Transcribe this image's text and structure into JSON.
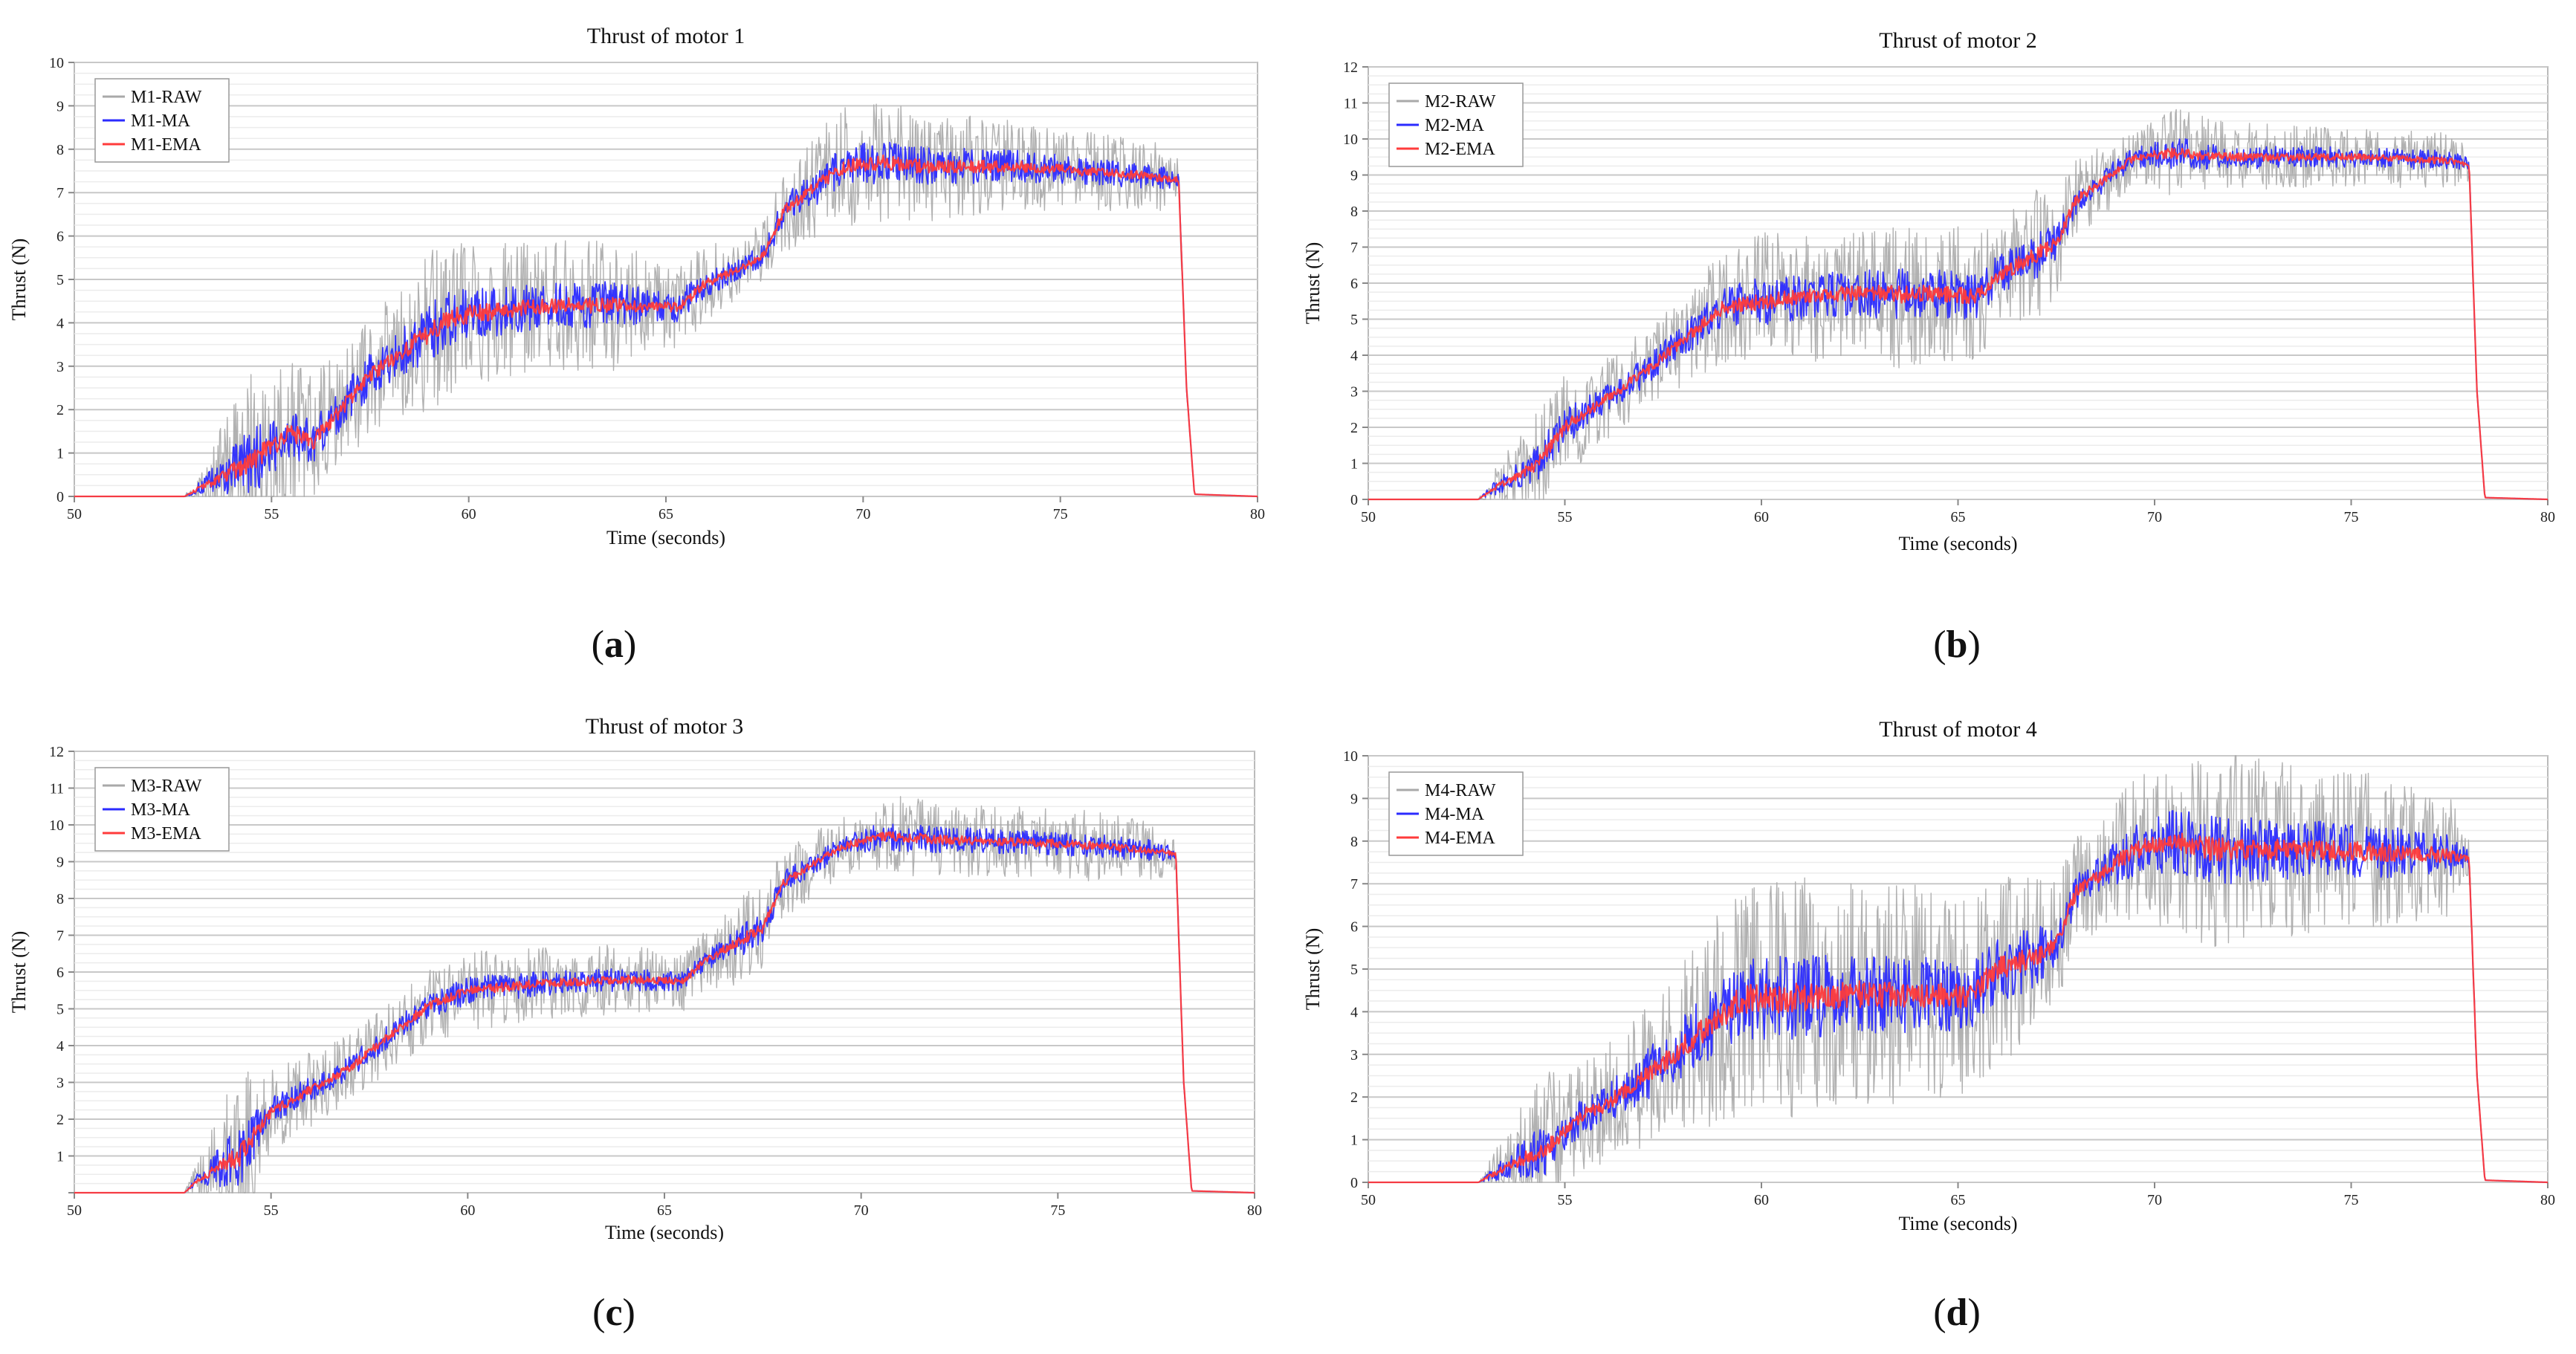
{
  "figure": {
    "x_axis_label": "Time (seconds)",
    "y_axis_label": "Thrust (N)"
  },
  "chart_data": [
    {
      "type": "line",
      "panel_label": "a",
      "title": "Thrust of motor 1",
      "xlabel": "Time (seconds)",
      "ylabel": "Thrust (N)",
      "xlim": [
        50,
        80
      ],
      "ylim": [
        0,
        10
      ],
      "xticks": [
        "50",
        "55",
        "60",
        "65",
        "70",
        "75",
        "80"
      ],
      "yticks": [
        "0",
        "1",
        "2",
        "3",
        "4",
        "5",
        "6",
        "7",
        "8",
        "9",
        "10"
      ],
      "grid": true,
      "legend": "top-left",
      "series": [
        {
          "name": "M1-RAW",
          "color": "#a9a9a9",
          "noise": 1.0
        },
        {
          "name": "M1-MA",
          "color": "#2b2bff",
          "noise": 0.35
        },
        {
          "name": "M1-EMA",
          "color": "#ff3b3b",
          "noise": 0.12
        }
      ],
      "profile": {
        "x": [
          50,
          52.8,
          53.2,
          54.5,
          55.5,
          56,
          57.5,
          59.5,
          60,
          62,
          64,
          65.3,
          66,
          67,
          67.5,
          68,
          69.5,
          70.5,
          71.5,
          74,
          77,
          78.0,
          78.2,
          78.4,
          80
        ],
        "y": [
          0,
          0,
          0.2,
          0.8,
          1.5,
          1.2,
          2.8,
          4.1,
          4.2,
          4.4,
          4.4,
          4.35,
          4.9,
          5.3,
          5.6,
          6.6,
          7.6,
          7.7,
          7.6,
          7.6,
          7.4,
          7.3,
          2.5,
          0.05,
          0
        ]
      },
      "noise_amp": {
        "x": [
          50,
          52.8,
          53.3,
          54.5,
          55,
          56.5,
          58,
          59,
          60,
          62,
          63.5,
          65,
          66,
          67,
          68,
          69,
          70,
          72,
          75,
          77.5,
          78,
          78.3,
          80
        ],
        "a": [
          0,
          0,
          0.4,
          1.4,
          1.2,
          0.9,
          0.9,
          1.2,
          1.1,
          0.9,
          1.0,
          0.6,
          0.6,
          0.4,
          0.6,
          0.8,
          0.9,
          0.8,
          0.6,
          0.5,
          0.3,
          0,
          0
        ]
      }
    },
    {
      "type": "line",
      "panel_label": "b",
      "title": "Thrust of motor 2",
      "xlabel": "Time (seconds)",
      "ylabel": "Thrust (N)",
      "xlim": [
        50,
        80
      ],
      "ylim": [
        0,
        12
      ],
      "xticks": [
        "50",
        "55",
        "60",
        "65",
        "70",
        "75",
        "80"
      ],
      "yticks": [
        "0",
        "1",
        "2",
        "3",
        "4",
        "5",
        "6",
        "7",
        "8",
        "9",
        "10",
        "11",
        "12"
      ],
      "grid": true,
      "legend": "top-left",
      "series": [
        {
          "name": "M2-RAW",
          "color": "#a9a9a9",
          "noise": 1.0
        },
        {
          "name": "M2-MA",
          "color": "#2b2bff",
          "noise": 0.35
        },
        {
          "name": "M2-EMA",
          "color": "#ff3b3b",
          "noise": 0.12
        }
      ],
      "profile": {
        "x": [
          50,
          52.8,
          53.2,
          54.2,
          55,
          57,
          59,
          60,
          62,
          64,
          65.5,
          66,
          67,
          67.5,
          68,
          69.5,
          70.5,
          72,
          75,
          77.5,
          78.0,
          78.2,
          78.4,
          80
        ],
        "y": [
          0,
          0,
          0.3,
          0.9,
          2.0,
          3.5,
          5.3,
          5.5,
          5.7,
          5.7,
          5.65,
          6.2,
          6.8,
          7.1,
          8.3,
          9.5,
          9.6,
          9.5,
          9.5,
          9.4,
          9.3,
          3.0,
          0.05,
          0
        ]
      },
      "noise_amp": {
        "x": [
          50,
          52.8,
          53.3,
          54.5,
          56,
          58,
          60,
          62,
          63.5,
          65,
          66,
          67,
          68,
          69.5,
          70.5,
          72,
          75,
          77.5,
          78,
          78.3,
          80
        ],
        "a": [
          0,
          0,
          0.4,
          1.0,
          0.7,
          0.8,
          1.2,
          1.1,
          1.3,
          1.2,
          1.0,
          1.2,
          0.7,
          0.5,
          0.8,
          0.6,
          0.5,
          0.5,
          0.3,
          0,
          0
        ]
      }
    },
    {
      "type": "line",
      "panel_label": "c",
      "title": "Thrust of motor 3",
      "xlabel": "Time (seconds)",
      "ylabel": "Thrust (N)",
      "xlim": [
        50,
        80
      ],
      "ylim": [
        0,
        12
      ],
      "xticks": [
        "50",
        "55",
        "60",
        "65",
        "70",
        "75",
        "80"
      ],
      "yticks": [
        "",
        "1",
        "2",
        "3",
        "4",
        "5",
        "6",
        "7",
        "8",
        "9",
        "10",
        "11",
        "12"
      ],
      "grid": true,
      "legend": "top-left",
      "series": [
        {
          "name": "M3-RAW",
          "color": "#a9a9a9",
          "noise": 1.0
        },
        {
          "name": "M3-MA",
          "color": "#2b2bff",
          "noise": 0.35
        },
        {
          "name": "M3-EMA",
          "color": "#ff3b3b",
          "noise": 0.12
        }
      ],
      "profile": {
        "x": [
          50,
          52.8,
          53.2,
          54.2,
          55,
          57,
          59,
          60,
          62,
          64,
          65.5,
          66,
          67,
          67.5,
          68,
          69.5,
          70.5,
          72,
          75,
          77.5,
          78.0,
          78.2,
          78.4,
          80
        ],
        "y": [
          0,
          0,
          0.4,
          1.0,
          2.2,
          3.4,
          5.1,
          5.5,
          5.7,
          5.8,
          5.75,
          6.3,
          6.9,
          7.2,
          8.4,
          9.4,
          9.7,
          9.6,
          9.5,
          9.3,
          9.2,
          3.0,
          0.05,
          0
        ]
      },
      "noise_amp": {
        "x": [
          50,
          52.8,
          53.3,
          54.2,
          55,
          56.5,
          58,
          60,
          62,
          64,
          65,
          66,
          67,
          68,
          69.5,
          71,
          73,
          76,
          77.5,
          78,
          78.3,
          80
        ],
        "a": [
          0,
          0,
          0.5,
          1.6,
          0.7,
          0.6,
          0.6,
          0.7,
          0.6,
          0.6,
          0.5,
          0.5,
          0.8,
          0.6,
          0.5,
          0.7,
          0.6,
          0.6,
          0.5,
          0.3,
          0,
          0
        ]
      }
    },
    {
      "type": "line",
      "panel_label": "d",
      "title": "Thrust of motor 4",
      "xlabel": "Time (seconds)",
      "ylabel": "Thrust (N)",
      "xlim": [
        50,
        80
      ],
      "ylim": [
        0,
        10
      ],
      "xticks": [
        "50",
        "55",
        "60",
        "65",
        "70",
        "75",
        "80"
      ],
      "yticks": [
        "0",
        "1",
        "2",
        "3",
        "4",
        "5",
        "6",
        "7",
        "8",
        "9",
        "10"
      ],
      "grid": true,
      "legend": "top-left",
      "series": [
        {
          "name": "M4-RAW",
          "color": "#a9a9a9",
          "noise": 1.0
        },
        {
          "name": "M4-MA",
          "color": "#2b2bff",
          "noise": 0.35
        },
        {
          "name": "M4-EMA",
          "color": "#ff3b3b",
          "noise": 0.12
        }
      ],
      "profile": {
        "x": [
          50,
          52.8,
          53.2,
          54.5,
          55.5,
          56,
          57.5,
          59.5,
          60,
          62,
          64,
          65.3,
          66,
          67,
          67.5,
          68,
          69.5,
          70.5,
          71.5,
          74,
          77,
          78.0,
          78.2,
          78.4,
          80
        ],
        "y": [
          0,
          0,
          0.2,
          0.8,
          1.6,
          1.8,
          2.8,
          4.3,
          4.3,
          4.4,
          4.4,
          4.35,
          5.0,
          5.3,
          5.6,
          6.8,
          7.8,
          8.0,
          7.8,
          7.8,
          7.7,
          7.6,
          2.5,
          0.05,
          0
        ]
      },
      "noise_amp": {
        "x": [
          50,
          52.8,
          53.3,
          54.5,
          55,
          56.5,
          58,
          59,
          60,
          62,
          64,
          65.5,
          66.5,
          67.5,
          68.5,
          70,
          71.5,
          73,
          75,
          77.5,
          78,
          78.3,
          80
        ],
        "a": [
          0,
          0,
          0.4,
          1.2,
          0.8,
          0.9,
          1.3,
          1.6,
          1.8,
          1.7,
          1.6,
          1.4,
          1.5,
          0.9,
          0.8,
          1.2,
          1.5,
          1.3,
          1.2,
          0.9,
          0.3,
          0,
          0
        ]
      }
    }
  ]
}
